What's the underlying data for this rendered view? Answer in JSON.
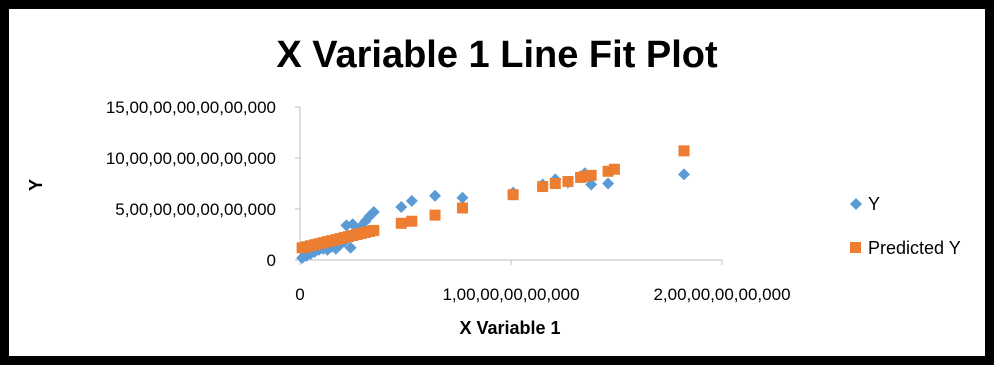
{
  "chart_data": {
    "type": "scatter",
    "title": "X Variable 1 Line Fit  Plot",
    "xlabel": "X Variable 1",
    "ylabel": "Y",
    "xlim": [
      0,
      2000000000000
    ],
    "ylim": [
      0,
      1500000000000000
    ],
    "x_ticks": [
      {
        "value": 0,
        "label": "0"
      },
      {
        "value": 1000000000000,
        "label": "1,00,00,00,00,000"
      },
      {
        "value": 2000000000000,
        "label": "2,00,00,00,00,000"
      }
    ],
    "y_ticks": [
      {
        "value": 0,
        "label": "0"
      },
      {
        "value": 500000000000000,
        "label": "5,00,00,00,00,00,000"
      },
      {
        "value": 1000000000000000,
        "label": "10,00,00,00,00,00,000"
      },
      {
        "value": 1500000000000000,
        "label": "15,00,00,00,00,00,000"
      }
    ],
    "grid": false,
    "legend_position": "right",
    "series": [
      {
        "name": "Y",
        "marker": "diamond",
        "color": "#5B9BD5",
        "points": [
          {
            "x": 10000000000,
            "y": 20000000000000
          },
          {
            "x": 30000000000,
            "y": 40000000000000
          },
          {
            "x": 50000000000,
            "y": 60000000000000
          },
          {
            "x": 70000000000,
            "y": 80000000000000
          },
          {
            "x": 90000000000,
            "y": 100000000000000
          },
          {
            "x": 110000000000,
            "y": 110000000000000
          },
          {
            "x": 130000000000,
            "y": 100000000000000
          },
          {
            "x": 150000000000,
            "y": 130000000000000
          },
          {
            "x": 170000000000,
            "y": 110000000000000
          },
          {
            "x": 190000000000,
            "y": 150000000000000
          },
          {
            "x": 210000000000,
            "y": 180000000000000
          },
          {
            "x": 220000000000,
            "y": 340000000000000
          },
          {
            "x": 240000000000,
            "y": 120000000000000
          },
          {
            "x": 250000000000,
            "y": 350000000000000
          },
          {
            "x": 270000000000,
            "y": 300000000000000
          },
          {
            "x": 290000000000,
            "y": 330000000000000
          },
          {
            "x": 310000000000,
            "y": 380000000000000
          },
          {
            "x": 330000000000,
            "y": 430000000000000
          },
          {
            "x": 350000000000,
            "y": 470000000000000
          },
          {
            "x": 480000000000,
            "y": 520000000000000
          },
          {
            "x": 530000000000,
            "y": 580000000000000
          },
          {
            "x": 640000000000,
            "y": 630000000000000
          },
          {
            "x": 770000000000,
            "y": 610000000000000
          },
          {
            "x": 1010000000000,
            "y": 660000000000000
          },
          {
            "x": 1150000000000,
            "y": 740000000000000
          },
          {
            "x": 1210000000000,
            "y": 790000000000000
          },
          {
            "x": 1270000000000,
            "y": 760000000000000
          },
          {
            "x": 1330000000000,
            "y": 820000000000000
          },
          {
            "x": 1350000000000,
            "y": 850000000000000
          },
          {
            "x": 1380000000000,
            "y": 740000000000000
          },
          {
            "x": 1460000000000,
            "y": 750000000000000
          },
          {
            "x": 1820000000000,
            "y": 840000000000000
          }
        ]
      },
      {
        "name": "Predicted Y",
        "marker": "square",
        "color": "#ED7D31",
        "points": [
          {
            "x": 10000000000,
            "y": 120000000000000
          },
          {
            "x": 30000000000,
            "y": 130000000000000
          },
          {
            "x": 50000000000,
            "y": 140000000000000
          },
          {
            "x": 70000000000,
            "y": 150000000000000
          },
          {
            "x": 90000000000,
            "y": 160000000000000
          },
          {
            "x": 110000000000,
            "y": 170000000000000
          },
          {
            "x": 130000000000,
            "y": 180000000000000
          },
          {
            "x": 150000000000,
            "y": 190000000000000
          },
          {
            "x": 170000000000,
            "y": 200000000000000
          },
          {
            "x": 190000000000,
            "y": 210000000000000
          },
          {
            "x": 210000000000,
            "y": 220000000000000
          },
          {
            "x": 230000000000,
            "y": 230000000000000
          },
          {
            "x": 250000000000,
            "y": 240000000000000
          },
          {
            "x": 270000000000,
            "y": 250000000000000
          },
          {
            "x": 290000000000,
            "y": 260000000000000
          },
          {
            "x": 310000000000,
            "y": 270000000000000
          },
          {
            "x": 330000000000,
            "y": 280000000000000
          },
          {
            "x": 350000000000,
            "y": 290000000000000
          },
          {
            "x": 480000000000,
            "y": 360000000000000
          },
          {
            "x": 530000000000,
            "y": 380000000000000
          },
          {
            "x": 640000000000,
            "y": 440000000000000
          },
          {
            "x": 770000000000,
            "y": 510000000000000
          },
          {
            "x": 1010000000000,
            "y": 640000000000000
          },
          {
            "x": 1150000000000,
            "y": 720000000000000
          },
          {
            "x": 1210000000000,
            "y": 750000000000000
          },
          {
            "x": 1270000000000,
            "y": 770000000000000
          },
          {
            "x": 1330000000000,
            "y": 810000000000000
          },
          {
            "x": 1350000000000,
            "y": 820000000000000
          },
          {
            "x": 1380000000000,
            "y": 830000000000000
          },
          {
            "x": 1460000000000,
            "y": 870000000000000
          },
          {
            "x": 1490000000000,
            "y": 890000000000000
          },
          {
            "x": 1820000000000,
            "y": 1070000000000000
          }
        ]
      }
    ]
  }
}
